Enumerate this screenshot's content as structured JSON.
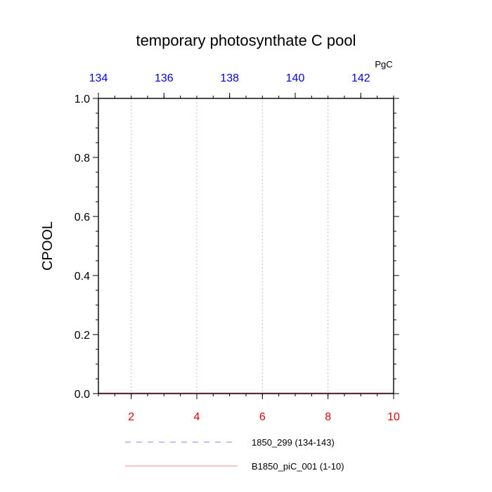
{
  "chart_data": {
    "type": "line",
    "title": "temporary photosynthate C pool",
    "ylabel": "CPOOL",
    "top_axis_unit": "PgC",
    "ylim": [
      0.0,
      1.0
    ],
    "y_ticks": [
      "0.0",
      "0.2",
      "0.4",
      "0.6",
      "0.8",
      "1.0"
    ],
    "xlim_bottom": [
      1,
      10
    ],
    "x_ticks_bottom": [
      "2",
      "4",
      "6",
      "8",
      "10"
    ],
    "xlim_top": [
      134,
      143
    ],
    "x_ticks_top": [
      "134",
      "136",
      "138",
      "140",
      "142"
    ],
    "grid": "vertical dashed gray",
    "bottom_axis_color": "#e00000",
    "top_axis_color": "#0000e0",
    "series": [
      {
        "name": "1850_299 (134-143)",
        "color": "#8888e0",
        "style": "dashed",
        "values": []
      },
      {
        "name": "B1850_piC_001 (1-10)",
        "color": "#f08a8a",
        "style": "solid",
        "values": []
      }
    ],
    "legend_placement": "bottom"
  }
}
